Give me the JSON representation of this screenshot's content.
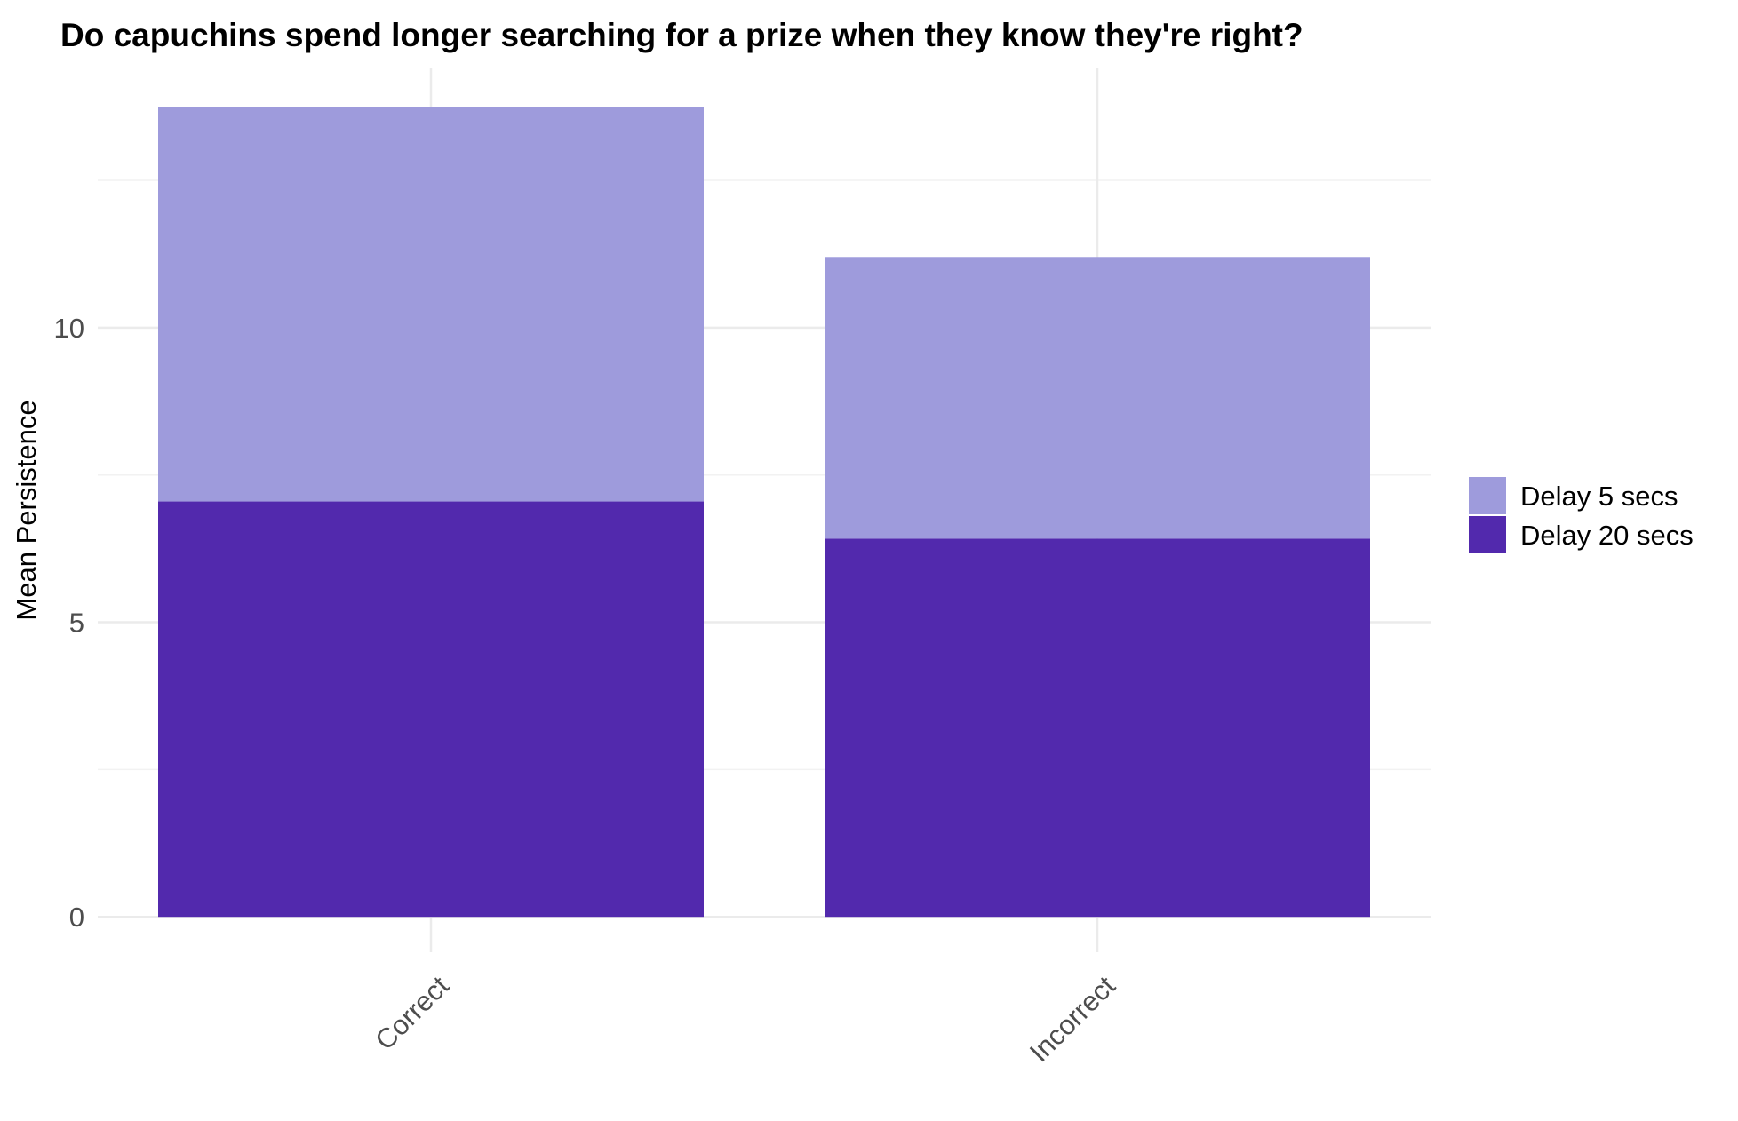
{
  "chart_data": {
    "type": "bar",
    "stacked": true,
    "title": "Do capuchins spend longer searching for a prize when they know they're right?",
    "xlabel": "",
    "ylabel": "Mean Persistence",
    "categories": [
      "Correct",
      "Incorrect"
    ],
    "series": [
      {
        "name": "Delay 20 secs",
        "values": [
          7.05,
          6.42
        ],
        "color": "#5229ad"
      },
      {
        "name": "Delay 5 secs",
        "values": [
          6.7,
          4.78
        ],
        "color": "#9e9bdc"
      }
    ],
    "legend": {
      "position": "right",
      "entries": [
        {
          "label": "Delay 5 secs",
          "color": "#9e9bdc"
        },
        {
          "label": "Delay 20 secs",
          "color": "#5229ad"
        }
      ]
    },
    "yticks": [
      "0",
      "5",
      "10"
    ],
    "ylim": [
      -0.6,
      14.4
    ],
    "grid": true,
    "x_tick_rotation": "45 degrees"
  }
}
